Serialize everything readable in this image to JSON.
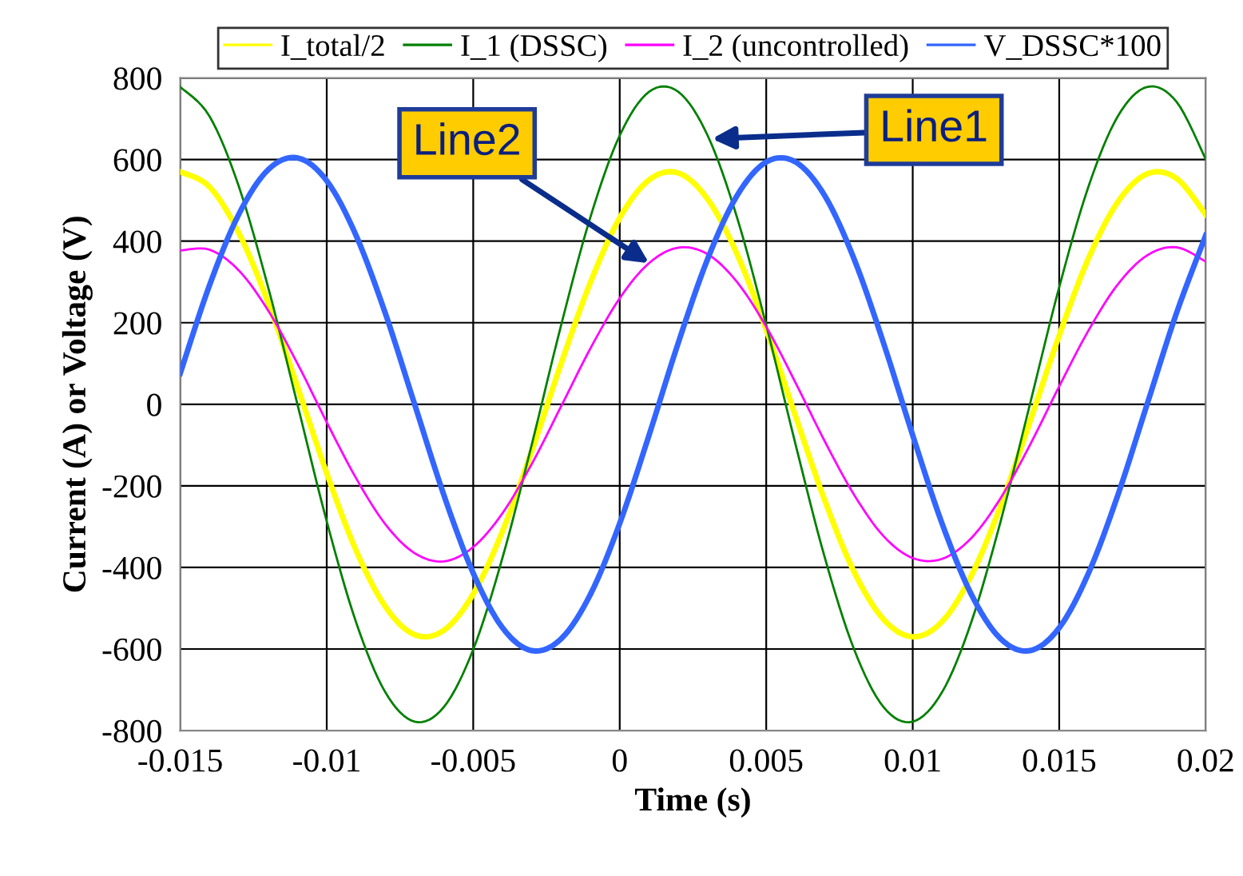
{
  "chart_data": {
    "type": "line",
    "xlabel": "Time (s)",
    "ylabel": "Current (A) or Voltage (V)",
    "x": [
      -0.015,
      -0.014,
      -0.013,
      -0.012,
      -0.011,
      -0.01,
      -0.009,
      -0.008,
      -0.007,
      -0.006,
      -0.005,
      -0.004,
      -0.003,
      -0.002,
      -0.001,
      0,
      0.001,
      0.002,
      0.003,
      0.004,
      0.005,
      0.006,
      0.007,
      0.008,
      0.009,
      0.01,
      0.011,
      0.012,
      0.013,
      0.014,
      0.015,
      0.016,
      0.017,
      0.018,
      0.019,
      0.02
    ],
    "series": [
      {
        "name": "I_total/2",
        "color": "#ffff00",
        "values": [
          570,
          533,
          420,
          249,
          43,
          -169,
          -358,
          -496,
          -565,
          -554,
          -465,
          -311,
          -114,
          100,
          299,
          457,
          550,
          567,
          503,
          369,
          183,
          -29,
          -236,
          -411,
          -527,
          -570,
          -533,
          -420,
          -249,
          -43,
          169,
          358,
          496,
          565,
          554,
          465
        ]
      },
      {
        "name": "I_1 (DSSC)",
        "color": "#008000",
        "values": [
          778,
          706,
          534,
          287,
          0,
          -287,
          -534,
          -706,
          -778,
          -742,
          -601,
          -376,
          -98,
          194,
          459,
          659,
          766,
          766,
          659,
          459,
          194,
          -98,
          -376,
          -601,
          -742,
          -778,
          -706,
          -534,
          -287,
          0,
          287,
          534,
          706,
          778,
          742,
          601
        ]
      },
      {
        "name": "I_2 (uncontrolled)",
        "color": "#ff00ff",
        "values": [
          377,
          379,
          328,
          230,
          100,
          -44,
          -181,
          -294,
          -365,
          -385,
          -350,
          -267,
          -146,
          -5,
          137,
          260,
          346,
          384,
          368,
          300,
          190,
          53,
          -91,
          -222,
          -323,
          -377,
          -379,
          -328,
          -230,
          -100,
          44,
          181,
          294,
          365,
          385,
          350
        ]
      },
      {
        "name": "V_DSSC*100",
        "color": "#3366ff",
        "values": [
          76,
          292,
          466,
          575,
          604,
          548,
          414,
          223,
          0,
          -223,
          -414,
          -548,
          -604,
          -575,
          -466,
          -292,
          -76,
          151,
          356,
          511,
          594,
          594,
          511,
          356,
          151,
          -76,
          -292,
          -466,
          -575,
          -604,
          -548,
          -414,
          -223,
          0,
          223,
          414
        ]
      }
    ],
    "xlim": [
      -0.015,
      0.02
    ],
    "xticks": [
      -0.015,
      -0.01,
      -0.005,
      0,
      0.005,
      0.01,
      0.015,
      0.02
    ],
    "ylim": [
      -800,
      800
    ],
    "yticks": [
      -800,
      -600,
      -400,
      -200,
      0,
      200,
      400,
      600,
      800
    ],
    "grid": true,
    "legend": "top",
    "marker": "none",
    "line_style": "solid",
    "annotations": [
      {
        "text": "Line1",
        "x": 0.00315,
        "y": 651
      },
      {
        "text": "Line2",
        "x": 0.001,
        "y": 346
      }
    ]
  }
}
